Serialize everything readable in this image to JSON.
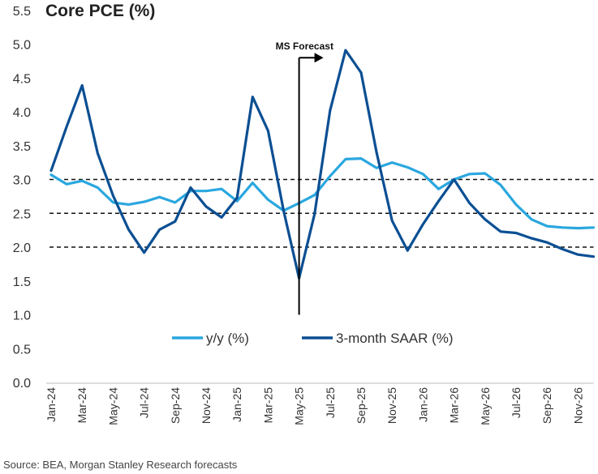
{
  "chart_data": {
    "type": "line",
    "title": "Core PCE (%)",
    "ylim": [
      0,
      5.5
    ],
    "y_ticks": [
      "0.0",
      "0.5",
      "1.0",
      "1.5",
      "2.0",
      "2.5",
      "3.0",
      "3.5",
      "4.0",
      "4.5",
      "5.0",
      "5.5"
    ],
    "x": [
      "Jan-24",
      "Feb-24",
      "Mar-24",
      "Apr-24",
      "May-24",
      "Jun-24",
      "Jul-24",
      "Aug-24",
      "Sep-24",
      "Oct-24",
      "Nov-24",
      "Dec-24",
      "Jan-25",
      "Feb-25",
      "Mar-25",
      "Apr-25",
      "May-25",
      "Jun-25",
      "Jul-25",
      "Aug-25",
      "Sep-25",
      "Oct-25",
      "Nov-25",
      "Dec-25",
      "Jan-26",
      "Feb-26",
      "Mar-26",
      "Apr-26",
      "May-26",
      "Jun-26",
      "Jul-26",
      "Aug-26",
      "Sep-26",
      "Oct-26",
      "Nov-26",
      "Dec-26"
    ],
    "x_tick_labels": [
      "Jan-24",
      "Mar-24",
      "May-24",
      "Jul-24",
      "Sep-24",
      "Nov-24",
      "Jan-25",
      "Mar-25",
      "May-25",
      "Jul-25",
      "Sep-25",
      "Nov-25",
      "Jan-26",
      "Mar-26",
      "May-26",
      "Jul-26",
      "Sep-26",
      "Nov-26"
    ],
    "series": [
      {
        "name": "y/y (%)",
        "color": "#2aa7df",
        "values": [
          3.07,
          2.93,
          2.98,
          2.88,
          2.66,
          2.63,
          2.67,
          2.74,
          2.66,
          2.83,
          2.83,
          2.86,
          2.68,
          2.95,
          2.7,
          2.54,
          2.65,
          2.77,
          3.05,
          3.3,
          3.31,
          3.17,
          3.25,
          3.18,
          3.08,
          2.86,
          3.0,
          3.08,
          3.09,
          2.92,
          2.63,
          2.41,
          2.31,
          2.29,
          2.28,
          2.29
        ]
      },
      {
        "name": "3-month SAAR (%)",
        "color": "#0b4f93",
        "values": [
          3.13,
          3.78,
          4.39,
          3.39,
          2.76,
          2.26,
          1.92,
          2.26,
          2.38,
          2.88,
          2.6,
          2.44,
          2.73,
          4.22,
          3.72,
          2.54,
          1.54,
          2.49,
          4.02,
          4.91,
          4.58,
          3.4,
          2.39,
          1.95,
          2.34,
          2.68,
          3.0,
          2.65,
          2.41,
          2.23,
          2.21,
          2.13,
          2.07,
          1.97,
          1.89,
          1.86
        ]
      }
    ],
    "reference_lines": [
      2.0,
      2.5,
      3.0
    ],
    "annotations": [
      {
        "text": "MS Forecast",
        "x": "May-25"
      }
    ],
    "grid": false,
    "legend_position": "bottom-center"
  },
  "source": "Source: BEA, Morgan Stanley Research forecasts"
}
